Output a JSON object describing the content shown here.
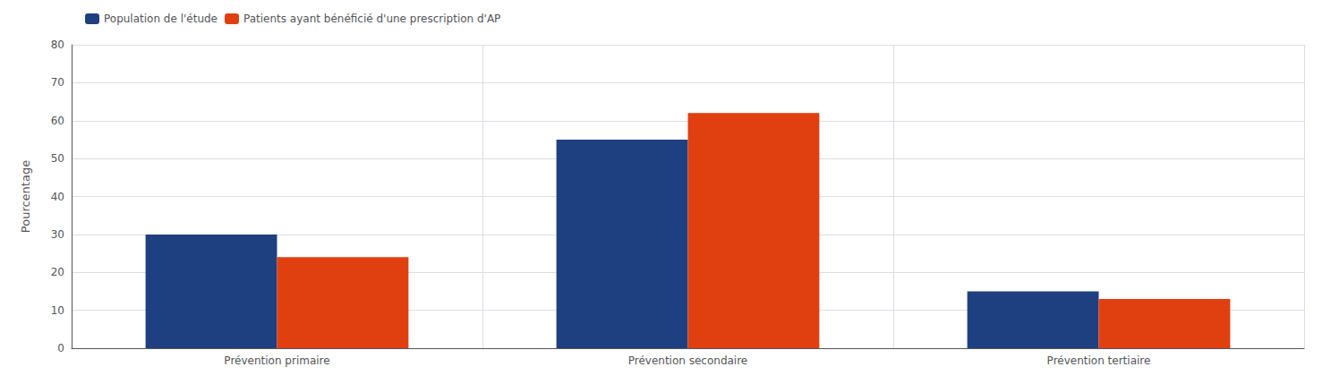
{
  "chart_data": {
    "type": "bar",
    "categories": [
      "Prévention primaire",
      "Prévention secondaire",
      "Prévention tertiaire"
    ],
    "series": [
      {
        "name": "Population de l'étude",
        "color": "#1f4080",
        "values": [
          30,
          55,
          15
        ]
      },
      {
        "name": "Patients ayant bénéficié d'une prescription d'AP",
        "color": "#e04010",
        "values": [
          24,
          62,
          13
        ]
      }
    ],
    "ylabel": "Pourcentage",
    "ylim": [
      0,
      80
    ],
    "yticks": [
      0,
      10,
      20,
      30,
      40,
      50,
      60,
      70,
      80
    ],
    "grid": true,
    "legend": "upper left"
  }
}
